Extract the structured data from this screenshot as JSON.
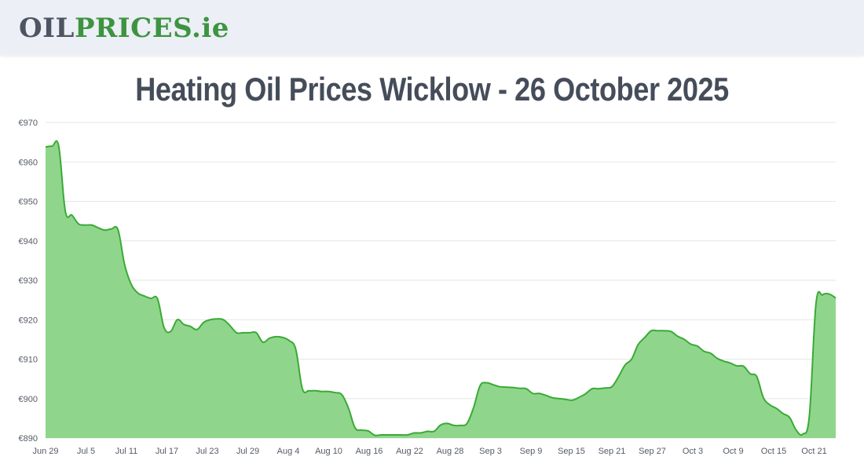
{
  "header": {
    "logo": {
      "part1": "OIL",
      "part2": "PRICES",
      "part3": ".ie"
    }
  },
  "colors": {
    "header_bg": "#eceff5",
    "line": "#3aaa35",
    "area": "#8fd68c",
    "grid": "#e6e6e6"
  },
  "chart_data": {
    "type": "area",
    "title": "Heating Oil Prices Wicklow - 26 October 2025",
    "xlabel": "",
    "ylabel": "",
    "ylim": [
      890,
      970
    ],
    "yticks": [
      890,
      900,
      910,
      920,
      930,
      940,
      950,
      960,
      970
    ],
    "ytick_labels": [
      "€890",
      "€900",
      "€910",
      "€920",
      "€930",
      "€940",
      "€950",
      "€960",
      "€970"
    ],
    "x_tick_labels": [
      "Jun 29",
      "Jul 5",
      "Jul 11",
      "Jul 17",
      "Jul 23",
      "Jul 29",
      "Aug 4",
      "Aug 10",
      "Aug 16",
      "Aug 22",
      "Aug 28",
      "Sep 3",
      "Sep 9",
      "Sep 15",
      "Sep 21",
      "Sep 27",
      "Oct 3",
      "Oct 9",
      "Oct 15",
      "Oct 21"
    ],
    "grid": true,
    "series": [
      {
        "values": [
          963.8,
          964,
          964,
          947.5,
          946.5,
          944.3,
          944,
          944,
          943.3,
          942.7,
          943,
          942.8,
          934,
          929,
          926.8,
          926,
          925.4,
          925.3,
          918,
          917,
          920,
          918.8,
          918.3,
          917.5,
          919.3,
          920,
          920.2,
          920,
          918.5,
          916.7,
          916.7,
          916.7,
          916.7,
          914.3,
          915.3,
          915.7,
          915.5,
          914.7,
          912.5,
          902.5,
          902,
          902,
          901.8,
          901.8,
          901.5,
          901,
          897.6,
          892.6,
          892,
          891.8,
          890.7,
          890.8,
          890.8,
          890.8,
          890.8,
          890.8,
          891.3,
          891.3,
          891.7,
          891.7,
          893.3,
          893.7,
          893.2,
          893.2,
          893.7,
          897.7,
          903.3,
          904,
          903.5,
          903,
          902.9,
          902.8,
          902.6,
          902.5,
          901.3,
          901.3,
          900.8,
          900.2,
          900,
          899.8,
          899.6,
          900.3,
          901.2,
          902.5,
          902.5,
          902.7,
          903,
          905.5,
          908.5,
          910,
          913.7,
          915.5,
          917.2,
          917.2,
          917.2,
          917,
          915.8,
          915,
          913.8,
          913.3,
          912,
          911.5,
          910.2,
          909.5,
          909,
          908.3,
          908.2,
          906.3,
          905.6,
          900.3,
          898.4,
          897.5,
          896.2,
          895.2,
          892,
          891,
          895.7,
          924,
          926.3,
          926.5,
          925.5
        ]
      }
    ]
  }
}
